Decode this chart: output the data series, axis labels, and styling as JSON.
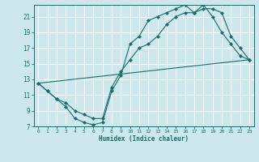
{
  "xlabel": "Humidex (Indice chaleur)",
  "bg_color": "#cce8ec",
  "grid_color": "#ffffff",
  "line_color": "#1a6b6b",
  "xlim": [
    -0.5,
    23.5
  ],
  "ylim": [
    7,
    22.5
  ],
  "xticks": [
    0,
    1,
    2,
    3,
    4,
    5,
    6,
    7,
    8,
    9,
    10,
    11,
    12,
    13,
    14,
    15,
    16,
    17,
    18,
    19,
    20,
    21,
    22,
    23
  ],
  "yticks": [
    7,
    9,
    11,
    13,
    15,
    17,
    19,
    21
  ],
  "series": [
    {
      "x": [
        0,
        1,
        2,
        3,
        4,
        5,
        6,
        7,
        8,
        9,
        10,
        11,
        12,
        13,
        14,
        15,
        16,
        17,
        18,
        19,
        20,
        21,
        22,
        23
      ],
      "y": [
        12.5,
        11.5,
        10.5,
        9.5,
        8.0,
        7.5,
        7.2,
        7.5,
        11.5,
        13.5,
        17.5,
        18.5,
        20.5,
        21.0,
        21.5,
        22.0,
        22.5,
        21.5,
        22.5,
        21.0,
        19.0,
        17.5,
        16.0,
        15.5
      ],
      "has_markers": true
    },
    {
      "x": [
        0,
        1,
        2,
        3,
        4,
        5,
        6,
        7,
        8,
        9,
        10,
        11,
        12,
        13,
        14,
        15,
        16,
        17,
        18,
        19,
        20,
        21,
        22,
        23
      ],
      "y": [
        12.5,
        11.5,
        10.5,
        10.0,
        9.0,
        8.5,
        8.0,
        8.0,
        12.0,
        14.0,
        15.5,
        17.0,
        17.5,
        18.5,
        20.0,
        21.0,
        21.5,
        21.5,
        22.0,
        22.0,
        21.5,
        18.5,
        17.0,
        15.5
      ],
      "has_markers": true
    },
    {
      "x": [
        0,
        23
      ],
      "y": [
        12.5,
        15.5
      ],
      "has_markers": false
    }
  ]
}
